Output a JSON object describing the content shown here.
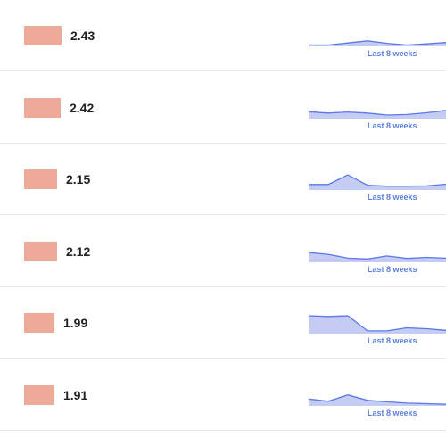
{
  "colors": {
    "bar": "#eeaa99",
    "spark_line": "#5a78e6",
    "spark_fill": "#c4ccf4",
    "label": "#5b7fe0"
  },
  "rows": [
    {
      "value": "2.43",
      "bar_fraction": 1.0,
      "spark_label": "Last 8 weeks",
      "spark": [
        1.0,
        1.0,
        2.5,
        4.0,
        2.2,
        1.0,
        1.8,
        2.8
      ]
    },
    {
      "value": "2.42",
      "bar_fraction": 0.98,
      "spark_label": "Last 8 weeks",
      "spark": [
        5.0,
        4.0,
        4.8,
        4.0,
        2.6,
        3.0,
        4.2,
        6.0
      ]
    },
    {
      "value": "2.15",
      "bar_fraction": 0.88,
      "spark_label": "Last 8 weeks",
      "spark": [
        4.0,
        4.0,
        11.0,
        3.5,
        2.8,
        2.8,
        3.0,
        4.2
      ]
    },
    {
      "value": "2.12",
      "bar_fraction": 0.87,
      "spark_label": "Last 8 weeks",
      "spark": [
        7.0,
        5.8,
        3.0,
        2.4,
        4.6,
        2.8,
        3.6,
        3.0
      ]
    },
    {
      "value": "1.99",
      "bar_fraction": 0.82,
      "spark_label": "Last 8 weeks",
      "spark": [
        13.0,
        12.5,
        13.0,
        2.0,
        2.0,
        4.2,
        3.6,
        2.4
      ]
    },
    {
      "value": "1.91",
      "bar_fraction": 0.8,
      "spark_label": "Last 8 weeks",
      "spark": [
        5.0,
        3.4,
        8.0,
        4.0,
        3.0,
        2.0,
        1.6,
        1.2
      ]
    }
  ]
}
